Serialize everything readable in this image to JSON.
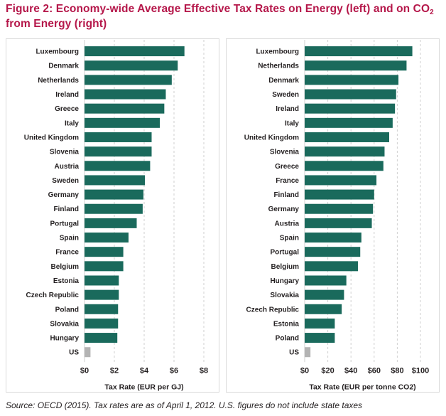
{
  "figure": {
    "title_line1_pre": "Figure 2: Economy-wide Average Effective Tax Rates on Energy (left) and on CO",
    "title_line1_sub": "2",
    "title_line2": "from Energy (right)",
    "source": "Source: OECD (2015). Tax rates are as of April 1, 2012. U.S. figures do not include state taxes"
  },
  "colors": {
    "bar": "#1a6a5c",
    "us_bar": "#b3b3b3",
    "grid": "#cfcfcf",
    "title": "#b5174a"
  },
  "chart_data": [
    {
      "type": "bar",
      "orientation": "horizontal",
      "xlabel": "Tax Rate (EUR per GJ)",
      "xlim": [
        0,
        8
      ],
      "xticks": [
        0,
        2,
        4,
        6,
        8
      ],
      "xtick_labels": [
        "$0",
        "$2",
        "$4",
        "$6",
        "$8"
      ],
      "grid": "vertical dashed",
      "categories": [
        "Luxembourg",
        "Denmark",
        "Netherlands",
        "Ireland",
        "Greece",
        "Italy",
        "United Kingdom",
        "Slovenia",
        "Austria",
        "Sweden",
        "Germany",
        "Finland",
        "Portugal",
        "Spain",
        "France",
        "Belgium",
        "Estonia",
        "Czech Republic",
        "Poland",
        "Slovakia",
        "Hungary",
        "US"
      ],
      "values": [
        6.7,
        6.25,
        5.85,
        5.45,
        5.35,
        5.05,
        4.5,
        4.5,
        4.4,
        4.05,
        3.95,
        3.9,
        3.5,
        2.95,
        2.6,
        2.6,
        2.3,
        2.3,
        2.25,
        2.25,
        2.2,
        0.4
      ]
    },
    {
      "type": "bar",
      "orientation": "horizontal",
      "xlabel": "Tax Rate (EUR per tonne CO2)",
      "xlim": [
        0,
        100
      ],
      "xticks": [
        0,
        20,
        40,
        60,
        80,
        100
      ],
      "xtick_labels": [
        "$0",
        "$20",
        "$40",
        "$60",
        "$80",
        "$100"
      ],
      "grid": "vertical dashed",
      "categories": [
        "Luxembourg",
        "Netherlands",
        "Denmark",
        "Sweden",
        "Ireland",
        "Italy",
        "United Kingdom",
        "Slovenia",
        "Greece",
        "France",
        "Finland",
        "Germany",
        "Austria",
        "Spain",
        "Portugal",
        "Belgium",
        "Hungary",
        "Slovakia",
        "Czech Republic",
        "Estonia",
        "Poland",
        "US"
      ],
      "values": [
        93,
        88,
        81,
        79,
        78,
        76,
        73,
        69,
        68,
        62,
        60,
        59,
        58,
        49,
        48,
        46,
        36,
        34,
        32,
        26,
        26,
        5
      ]
    }
  ]
}
